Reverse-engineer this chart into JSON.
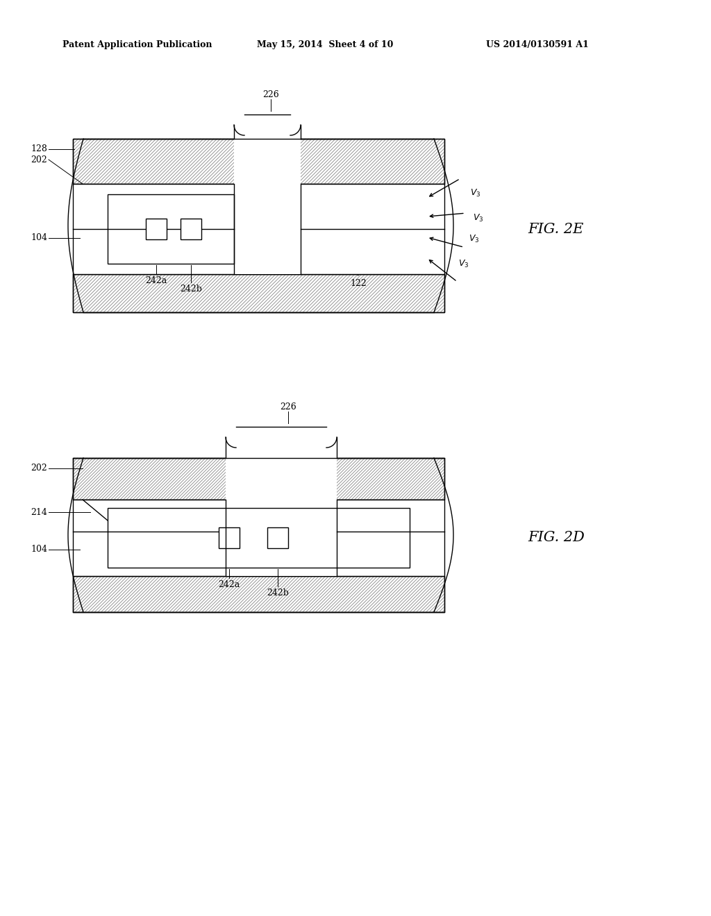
{
  "bg_color": "#ffffff",
  "line_color": "#000000",
  "header_text": "Patent Application Publication",
  "header_date": "May 15, 2014  Sheet 4 of 10",
  "header_patent": "US 2014/0130591 A1",
  "fig2e_label": "FIG. 2E",
  "fig2d_label": "FIG. 2D",
  "fig_lw": 1.0
}
